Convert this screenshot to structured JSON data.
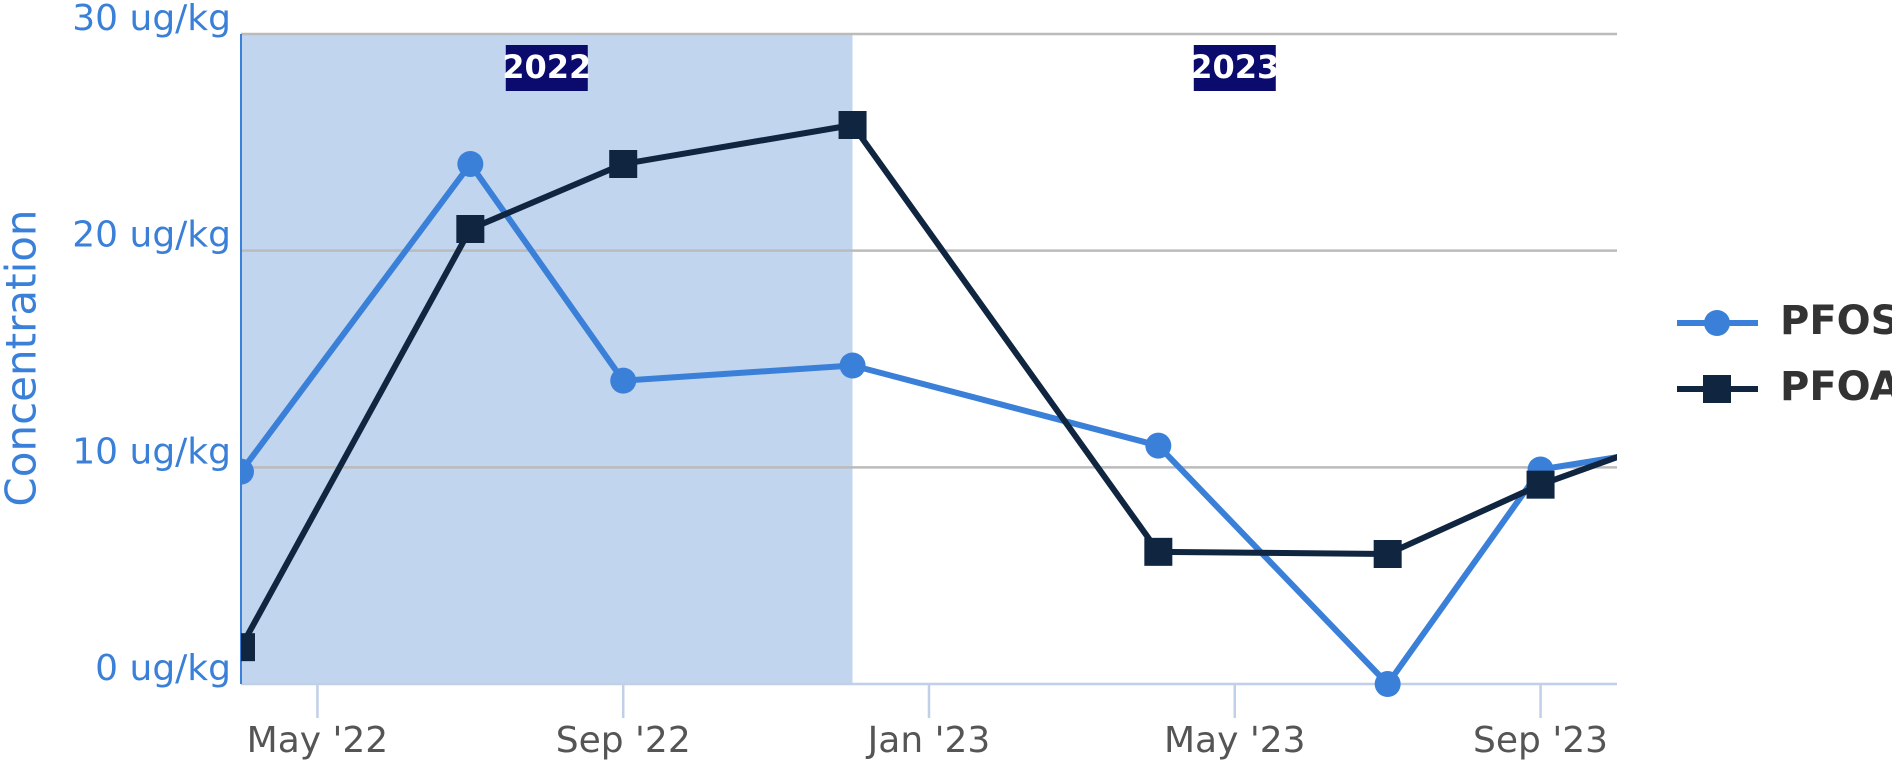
{
  "chart_data": {
    "type": "line",
    "y_label": "Concentration",
    "x": [
      "2022-04",
      "2022-07",
      "2022-09",
      "2022-12",
      "2023-04",
      "2023-07",
      "2023-09",
      "2023-12"
    ],
    "series": [
      {
        "name": "PFOS",
        "color": "#3a80d8",
        "marker": "circle",
        "values": [
          9.8,
          24.0,
          14.0,
          14.7,
          11.0,
          0,
          9.9,
          11.6
        ]
      },
      {
        "name": "PFOA",
        "color": "#0f2540",
        "marker": "square",
        "values": [
          1.7,
          21.0,
          24.0,
          25.8,
          6.1,
          6.0,
          9.2,
          13.0
        ]
      }
    ],
    "xlim": [
      "2022-04",
      "2023-10"
    ],
    "xticks": [
      {
        "value": "2022-05",
        "label": "May '22"
      },
      {
        "value": "2022-09",
        "label": "Sep '22"
      },
      {
        "value": "2023-01",
        "label": "Jan '23"
      },
      {
        "value": "2023-05",
        "label": "May '23"
      },
      {
        "value": "2023-09",
        "label": "Sep '23"
      }
    ],
    "ylim": [
      0,
      30
    ],
    "yticks": [
      {
        "value": 0,
        "label": "0 ug/kg"
      },
      {
        "value": 10,
        "label": "10 ug/kg"
      },
      {
        "value": 20,
        "label": "20 ug/kg"
      },
      {
        "value": 30,
        "label": "30 ug/kg"
      }
    ],
    "grid": true,
    "legend": "right",
    "bands": [
      {
        "label": "2022",
        "from": "2022-04",
        "to": "2022-12",
        "color": "#c2d5ee"
      },
      {
        "label": "2023",
        "from": "2022-12",
        "to": "2023-10",
        "color": "#ffffff"
      }
    ]
  }
}
